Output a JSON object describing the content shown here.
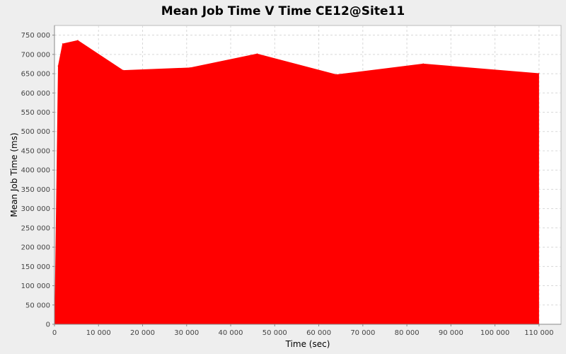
{
  "chart_data": {
    "type": "area",
    "title": "Mean Job Time V Time CE12@Site11",
    "xlabel": "Time (sec)",
    "ylabel": "Mean Job Time (ms)",
    "xlim": [
      0,
      115000
    ],
    "ylim": [
      0,
      775000
    ],
    "x_ticks": [
      0,
      10000,
      20000,
      30000,
      40000,
      50000,
      60000,
      70000,
      80000,
      90000,
      100000,
      110000
    ],
    "x_tick_labels": [
      "0",
      "10 000",
      "20 000",
      "30 000",
      "40 000",
      "50 000",
      "60 000",
      "70 000",
      "80 000",
      "90 000",
      "100 000",
      "110 000"
    ],
    "y_ticks": [
      0,
      50000,
      100000,
      150000,
      200000,
      250000,
      300000,
      350000,
      400000,
      450000,
      500000,
      550000,
      600000,
      650000,
      700000,
      750000
    ],
    "y_tick_labels": [
      "0",
      "50 000",
      "100 000",
      "150 000",
      "200 000",
      "250 000",
      "300 000",
      "350 000",
      "400 000",
      "450 000",
      "500 000",
      "550 000",
      "600 000",
      "650 000",
      "700 000",
      "750 000"
    ],
    "grid": true,
    "color": "#ff0000",
    "series": [
      {
        "x": [
          0,
          800,
          1800,
          5300,
          15600,
          30800,
          46000,
          64000,
          83700,
          110000
        ],
        "y": [
          0,
          670000,
          728000,
          737000,
          659000,
          666000,
          702000,
          648000,
          676000,
          651000
        ]
      }
    ]
  }
}
